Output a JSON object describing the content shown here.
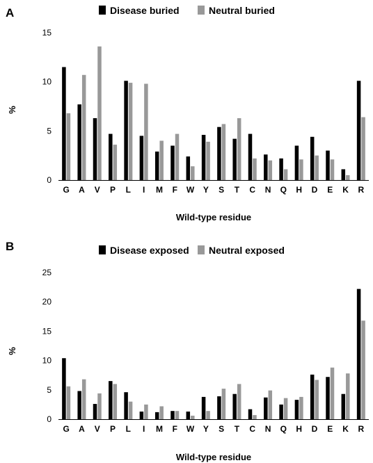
{
  "chart_data": [
    {
      "type": "bar",
      "panel": "A",
      "categories": [
        "G",
        "A",
        "V",
        "P",
        "L",
        "I",
        "M",
        "F",
        "W",
        "Y",
        "S",
        "T",
        "C",
        "N",
        "Q",
        "H",
        "D",
        "E",
        "K",
        "R"
      ],
      "series": [
        {
          "name": "Disease buried",
          "color": "#000000",
          "values": [
            11.5,
            7.7,
            6.3,
            4.7,
            10.1,
            4.5,
            2.9,
            3.5,
            2.4,
            4.6,
            5.4,
            4.2,
            4.7,
            2.6,
            2.2,
            3.5,
            4.4,
            3.0,
            1.1,
            10.1
          ]
        },
        {
          "name": "Neutral buried",
          "color": "#999999",
          "values": [
            6.8,
            10.7,
            13.6,
            3.6,
            9.9,
            9.8,
            4.0,
            4.7,
            1.4,
            3.9,
            5.7,
            6.3,
            2.2,
            2.0,
            1.1,
            2.1,
            2.5,
            2.1,
            0.5,
            6.4
          ]
        }
      ],
      "ylabel": "%",
      "xlabel": "Wild-type residue",
      "ylim": [
        0,
        15
      ],
      "yticks": [
        0,
        5,
        10,
        15
      ],
      "grid": false,
      "legend": "top-center"
    },
    {
      "type": "bar",
      "panel": "B",
      "categories": [
        "G",
        "A",
        "V",
        "P",
        "L",
        "I",
        "M",
        "F",
        "W",
        "Y",
        "S",
        "T",
        "C",
        "N",
        "Q",
        "H",
        "D",
        "E",
        "K",
        "R"
      ],
      "series": [
        {
          "name": "Disease exposed",
          "color": "#000000",
          "values": [
            10.4,
            4.8,
            2.6,
            6.5,
            4.6,
            1.3,
            1.2,
            1.4,
            1.3,
            3.8,
            3.9,
            4.3,
            1.7,
            3.7,
            2.5,
            3.3,
            7.6,
            7.2,
            4.3,
            22.2
          ]
        },
        {
          "name": "Neutral exposed",
          "color": "#999999",
          "values": [
            5.6,
            6.8,
            4.4,
            6.0,
            3.0,
            2.5,
            2.2,
            1.4,
            0.6,
            1.4,
            5.2,
            6.0,
            0.7,
            4.9,
            3.6,
            3.8,
            6.7,
            8.8,
            7.8,
            16.8
          ]
        }
      ],
      "ylabel": "%",
      "xlabel": "Wild-type residue",
      "ylim": [
        0,
        25
      ],
      "yticks": [
        0,
        5,
        10,
        15,
        20,
        25
      ],
      "grid": false,
      "legend": "top-center"
    }
  ]
}
